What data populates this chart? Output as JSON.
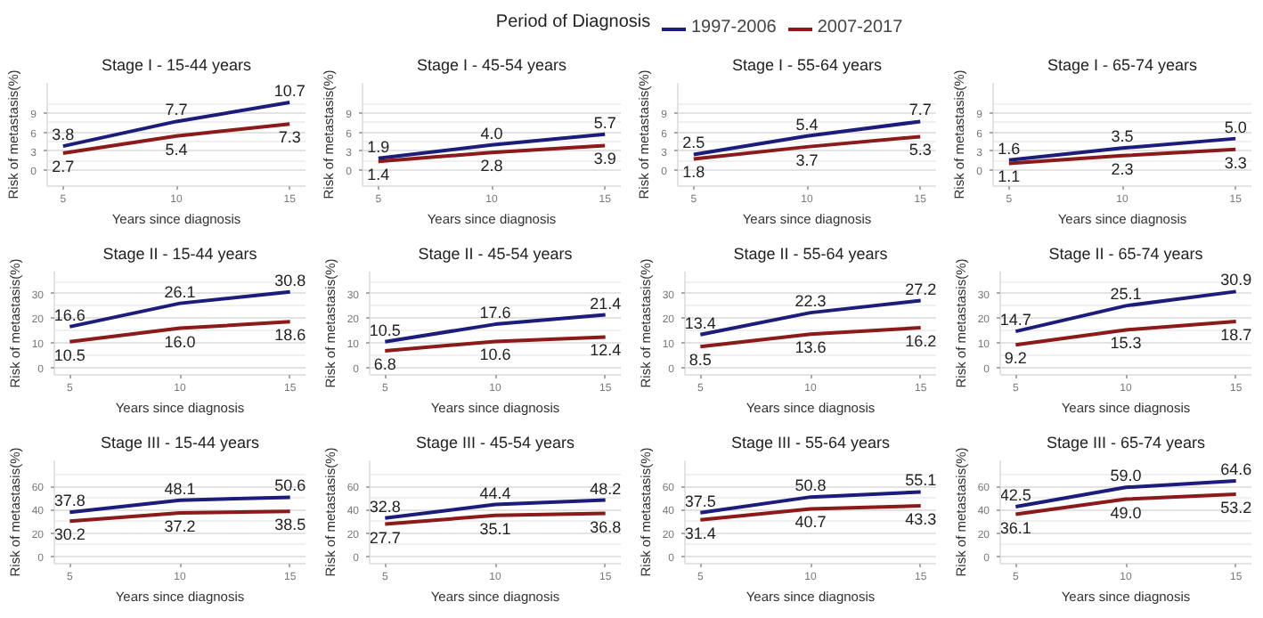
{
  "chart_data": [
    {
      "type": "line",
      "title": "Stage I - 15-44 years",
      "xlabel": "Years since diagnosis",
      "ylabel": "Risk of metastasis(%)",
      "x": [
        5,
        10,
        15
      ],
      "xlim": [
        4.3,
        15.7
      ],
      "xticks": [
        5,
        10,
        15
      ],
      "ylim": [
        -2.5,
        13.8
      ],
      "yticks": [
        0,
        3,
        6,
        9
      ],
      "grid": "y",
      "legend": "top",
      "legend_title": "Period of Diagnosis",
      "series": [
        {
          "name": "1997-2006",
          "color": "#1c1c7a",
          "values": [
            3.8,
            7.7,
            10.7
          ],
          "value_labels": [
            "3.8",
            "7.7",
            "10.7"
          ]
        },
        {
          "name": "2007-2017",
          "color": "#8b1a1a",
          "values": [
            2.7,
            5.4,
            7.3
          ],
          "value_labels": [
            "2.7",
            "5.4",
            "7.3"
          ]
        }
      ]
    },
    {
      "type": "line",
      "title": "Stage I - 45-54 years",
      "xlabel": "Years since diagnosis",
      "ylabel": "Risk of metastasis(%)",
      "x": [
        5,
        10,
        15
      ],
      "xlim": [
        4.3,
        15.7
      ],
      "xticks": [
        5,
        10,
        15
      ],
      "ylim": [
        -2.5,
        13.8
      ],
      "yticks": [
        0,
        3,
        6,
        9
      ],
      "grid": "y",
      "series": [
        {
          "color": "#1c1c7a",
          "values": [
            1.9,
            4.0,
            5.7
          ],
          "value_labels": [
            "1.9",
            "4.0",
            "5.7"
          ]
        },
        {
          "color": "#8b1a1a",
          "values": [
            1.4,
            2.8,
            3.9
          ],
          "value_labels": [
            "1.4",
            "2.8",
            "3.9"
          ]
        }
      ]
    },
    {
      "type": "line",
      "title": "Stage I - 55-64 years",
      "xlabel": "Years since diagnosis",
      "ylabel": "Risk of metastasis(%)",
      "x": [
        5,
        10,
        15
      ],
      "xlim": [
        4.3,
        15.7
      ],
      "xticks": [
        5,
        10,
        15
      ],
      "ylim": [
        -2.5,
        13.8
      ],
      "yticks": [
        0,
        3,
        6,
        9
      ],
      "grid": "y",
      "series": [
        {
          "color": "#1c1c7a",
          "values": [
            2.5,
            5.4,
            7.7
          ],
          "value_labels": [
            "2.5",
            "5.4",
            "7.7"
          ]
        },
        {
          "color": "#8b1a1a",
          "values": [
            1.8,
            3.7,
            5.3
          ],
          "value_labels": [
            "1.8",
            "3.7",
            "5.3"
          ]
        }
      ]
    },
    {
      "type": "line",
      "title": "Stage I - 65-74 years",
      "xlabel": "Years since diagnosis",
      "ylabel": "Risk of metastasis(%)",
      "x": [
        5,
        10,
        15
      ],
      "xlim": [
        4.3,
        15.7
      ],
      "xticks": [
        5,
        10,
        15
      ],
      "ylim": [
        -2.5,
        13.8
      ],
      "yticks": [
        0,
        3,
        6,
        9
      ],
      "grid": "y",
      "series": [
        {
          "color": "#1c1c7a",
          "values": [
            1.6,
            3.5,
            5.0
          ],
          "value_labels": [
            "1.6",
            "3.5",
            "5.0"
          ]
        },
        {
          "color": "#8b1a1a",
          "values": [
            1.1,
            2.3,
            3.3
          ],
          "value_labels": [
            "1.1",
            "2.3",
            "3.3"
          ]
        }
      ]
    },
    {
      "type": "line",
      "title": "Stage II - 15-44 years",
      "xlabel": "Years since diagnosis",
      "ylabel": "Risk of metastasis(%)",
      "x": [
        5,
        10,
        15
      ],
      "xlim": [
        4.3,
        15.7
      ],
      "xticks": [
        5,
        10,
        15
      ],
      "ylim": [
        -3,
        39
      ],
      "yticks": [
        0,
        10,
        20,
        30
      ],
      "grid": "y",
      "series": [
        {
          "color": "#1c1c7a",
          "values": [
            16.6,
            26.1,
            30.8
          ],
          "value_labels": [
            "16.6",
            "26.1",
            "30.8"
          ]
        },
        {
          "color": "#8b1a1a",
          "values": [
            10.5,
            16.0,
            18.6
          ],
          "value_labels": [
            "10.5",
            "16.0",
            "18.6"
          ]
        }
      ]
    },
    {
      "type": "line",
      "title": "Stage II - 45-54 years",
      "xlabel": "Years since diagnosis",
      "ylabel": "Risk of metastasis(%)",
      "x": [
        5,
        10,
        15
      ],
      "xlim": [
        4.3,
        15.7
      ],
      "xticks": [
        5,
        10,
        15
      ],
      "ylim": [
        -3,
        39
      ],
      "yticks": [
        0,
        10,
        20,
        30
      ],
      "grid": "y",
      "series": [
        {
          "color": "#1c1c7a",
          "values": [
            10.5,
            17.6,
            21.4
          ],
          "value_labels": [
            "10.5",
            "17.6",
            "21.4"
          ]
        },
        {
          "color": "#8b1a1a",
          "values": [
            6.8,
            10.6,
            12.4
          ],
          "value_labels": [
            "6.8",
            "10.6",
            "12.4"
          ]
        }
      ]
    },
    {
      "type": "line",
      "title": "Stage II - 55-64 years",
      "xlabel": "Years since diagnosis",
      "ylabel": "Risk of metastasis(%)",
      "x": [
        5,
        10,
        15
      ],
      "xlim": [
        4.3,
        15.7
      ],
      "xticks": [
        5,
        10,
        15
      ],
      "ylim": [
        -3,
        39
      ],
      "yticks": [
        0,
        10,
        20,
        30
      ],
      "grid": "y",
      "series": [
        {
          "color": "#1c1c7a",
          "values": [
            13.4,
            22.3,
            27.2
          ],
          "value_labels": [
            "13.4",
            "22.3",
            "27.2"
          ]
        },
        {
          "color": "#8b1a1a",
          "values": [
            8.5,
            13.6,
            16.2
          ],
          "value_labels": [
            "8.5",
            "13.6",
            "16.2"
          ]
        }
      ]
    },
    {
      "type": "line",
      "title": "Stage II - 65-74 years",
      "xlabel": "Years since diagnosis",
      "ylabel": "Risk of metastasis(%)",
      "x": [
        5,
        10,
        15
      ],
      "xlim": [
        4.3,
        15.7
      ],
      "xticks": [
        5,
        10,
        15
      ],
      "ylim": [
        -3,
        39
      ],
      "yticks": [
        0,
        10,
        20,
        30
      ],
      "grid": "y",
      "series": [
        {
          "color": "#1c1c7a",
          "values": [
            14.7,
            25.1,
            30.9
          ],
          "value_labels": [
            "14.7",
            "25.1",
            "30.9"
          ]
        },
        {
          "color": "#8b1a1a",
          "values": [
            9.2,
            15.3,
            18.7
          ],
          "value_labels": [
            "9.2",
            "15.3",
            "18.7"
          ]
        }
      ]
    },
    {
      "type": "line",
      "title": "Stage III - 15-44 years",
      "xlabel": "Years since diagnosis",
      "ylabel": "Risk of metastasis(%)",
      "x": [
        5,
        10,
        15
      ],
      "xlim": [
        4.3,
        15.7
      ],
      "xticks": [
        5,
        10,
        15
      ],
      "ylim": [
        -6,
        82
      ],
      "yticks": [
        0,
        20,
        40,
        60
      ],
      "grid": "y",
      "series": [
        {
          "color": "#1c1c7a",
          "values": [
            37.8,
            48.1,
            50.6
          ],
          "value_labels": [
            "37.8",
            "48.1",
            "50.6"
          ]
        },
        {
          "color": "#8b1a1a",
          "values": [
            30.2,
            37.2,
            38.5
          ],
          "value_labels": [
            "30.2",
            "37.2",
            "38.5"
          ]
        }
      ]
    },
    {
      "type": "line",
      "title": "Stage III - 45-54 years",
      "xlabel": "Years since diagnosis",
      "ylabel": "Risk of metastasis(%)",
      "x": [
        5,
        10,
        15
      ],
      "xlim": [
        4.3,
        15.7
      ],
      "xticks": [
        5,
        10,
        15
      ],
      "ylim": [
        -6,
        82
      ],
      "yticks": [
        0,
        20,
        40,
        60
      ],
      "grid": "y",
      "series": [
        {
          "color": "#1c1c7a",
          "values": [
            32.8,
            44.4,
            48.2
          ],
          "value_labels": [
            "32.8",
            "44.4",
            "48.2"
          ]
        },
        {
          "color": "#8b1a1a",
          "values": [
            27.7,
            35.1,
            36.8
          ],
          "value_labels": [
            "27.7",
            "35.1",
            "36.8"
          ]
        }
      ]
    },
    {
      "type": "line",
      "title": "Stage III - 55-64 years",
      "xlabel": "Years since diagnosis",
      "ylabel": "Risk of metastasis(%)",
      "x": [
        5,
        10,
        15
      ],
      "xlim": [
        4.3,
        15.7
      ],
      "xticks": [
        5,
        10,
        15
      ],
      "ylim": [
        -6,
        82
      ],
      "yticks": [
        0,
        20,
        40,
        60
      ],
      "grid": "y",
      "series": [
        {
          "color": "#1c1c7a",
          "values": [
            37.5,
            50.8,
            55.1
          ],
          "value_labels": [
            "37.5",
            "50.8",
            "55.1"
          ]
        },
        {
          "color": "#8b1a1a",
          "values": [
            31.4,
            40.7,
            43.3
          ],
          "value_labels": [
            "31.4",
            "40.7",
            "43.3"
          ]
        }
      ]
    },
    {
      "type": "line",
      "title": "Stage III - 65-74 years",
      "xlabel": "Years since diagnosis",
      "ylabel": "Risk of metastasis(%)",
      "x": [
        5,
        10,
        15
      ],
      "xlim": [
        4.3,
        15.7
      ],
      "xticks": [
        5,
        10,
        15
      ],
      "ylim": [
        -6,
        82
      ],
      "yticks": [
        0,
        20,
        40,
        60
      ],
      "grid": "y",
      "series": [
        {
          "color": "#1c1c7a",
          "values": [
            42.5,
            59.0,
            64.6
          ],
          "value_labels": [
            "42.5",
            "59.0",
            "64.6"
          ]
        },
        {
          "color": "#8b1a1a",
          "values": [
            36.1,
            49.0,
            53.2
          ],
          "value_labels": [
            "36.1",
            "49.0",
            "53.2"
          ]
        }
      ]
    }
  ]
}
